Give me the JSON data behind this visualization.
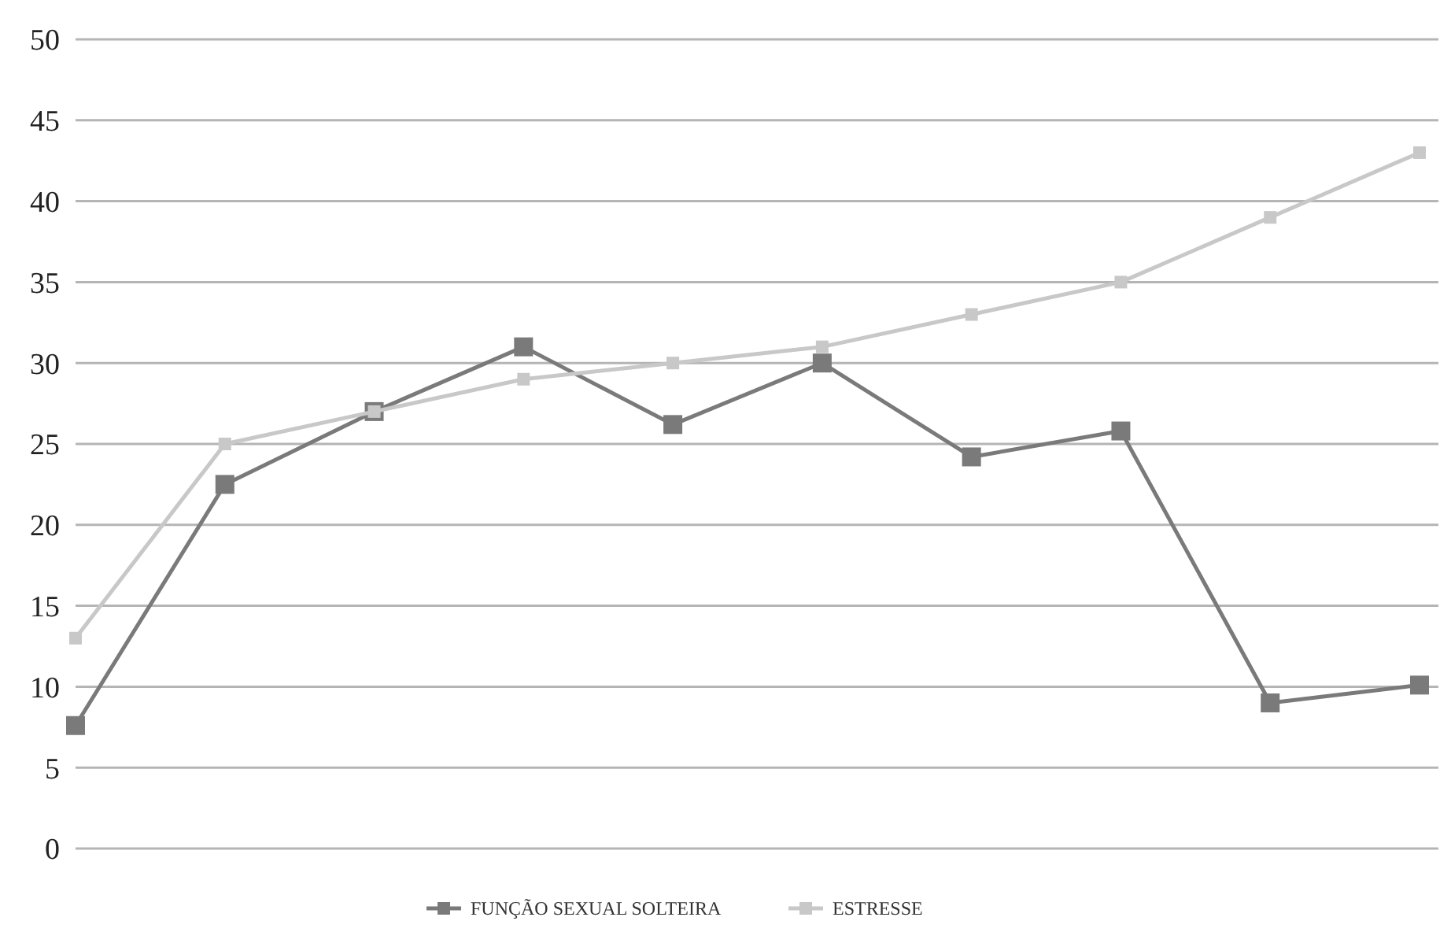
{
  "chart_data": {
    "type": "line",
    "categories": [
      null,
      null,
      null,
      null,
      null,
      null,
      null,
      null,
      null,
      null
    ],
    "series": [
      {
        "name": "FUNÇÃO SEXUAL SOLTEIRA",
        "color": "#7a7a7a",
        "values": [
          7.6,
          22.5,
          27,
          31,
          26.2,
          30,
          24.2,
          25.8,
          9,
          10.1
        ]
      },
      {
        "name": "ESTRESSE",
        "color": "#c8c8c8",
        "values": [
          13,
          25,
          27,
          29,
          30,
          31,
          33,
          35,
          39,
          43
        ]
      }
    ],
    "ylim": [
      0,
      50
    ],
    "yticks": [
      0,
      5,
      10,
      15,
      20,
      25,
      30,
      35,
      40,
      45,
      50
    ],
    "grid": "y",
    "legend": "bottom",
    "marker": "square",
    "line_style": "solid"
  }
}
